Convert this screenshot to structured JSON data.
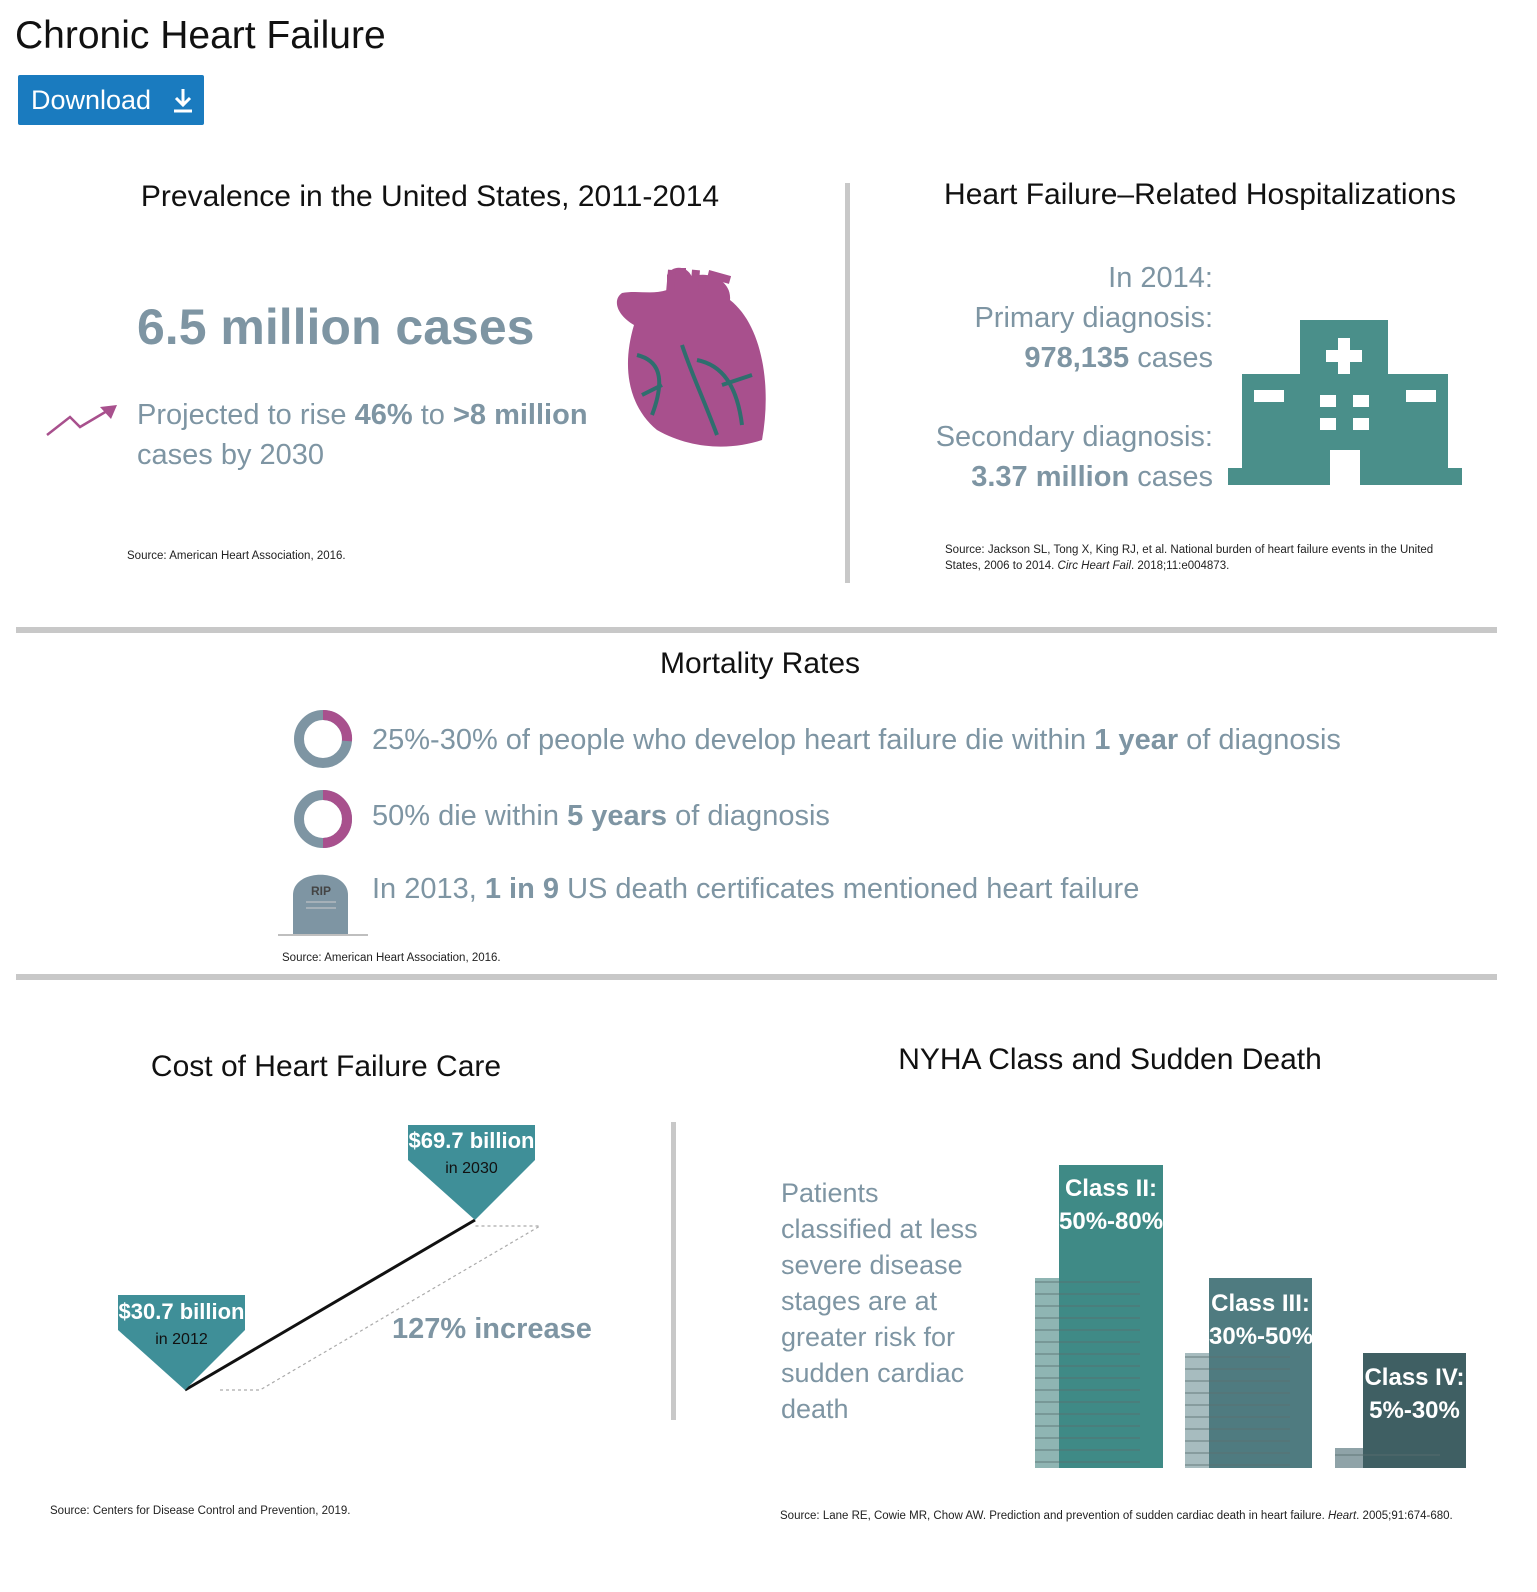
{
  "header": {
    "title": "Chronic Heart Failure",
    "download": "Download"
  },
  "prevalence": {
    "title": "Prevalence in the United States,  2011-2014",
    "cases": "6.5 million cases",
    "projection": [
      "Projected to rise ",
      "46%",
      " to ",
      ">8 million",
      " cases by 2030"
    ],
    "source": "Source:  American Heart Association, 2016."
  },
  "hospitalizations": {
    "title": "Heart Failure–Related Hospitalizations",
    "year": "In 2014:",
    "primary_label": "Primary diagnosis:",
    "primary_value": "978,135",
    "primary_unit": " cases",
    "secondary_label": "Secondary diagnosis:",
    "secondary_value": "3.37 million",
    "secondary_unit": " cases",
    "source": [
      "Source: Jackson SL, Tong X, King RJ, et al. National burden of heart failure events in the United States, 2006 to 2014. ",
      "Circ Heart Fail",
      ". 2018;11:e004873."
    ]
  },
  "mortality": {
    "title": "Mortality Rates",
    "items": [
      [
        "25%-30% of people who develop heart failure die within ",
        "1 year",
        " of diagnosis"
      ],
      [
        "50% die within ",
        "5 years",
        " of diagnosis"
      ],
      [
        "In 2013, ",
        "1 in 9",
        " US death certificates mentioned heart failure"
      ]
    ],
    "rip": "RIP",
    "source": "Source: American Heart Association, 2016."
  },
  "cost": {
    "title": "Cost of Heart Failure Care",
    "end_value": "$69.7 billion",
    "end_year": "in 2030",
    "start_value": "$30.7 billion",
    "start_year": "in 2012",
    "increase": "127% increase",
    "source": "Source: Centers for Disease Control and Prevention, 2019."
  },
  "nyha": {
    "title": "NYHA Class and Sudden Death",
    "description": "Patients classified at less severe disease stages are at greater risk for sudden cardiac death",
    "classes": [
      {
        "name": "Class II:",
        "range": "50%-80%"
      },
      {
        "name": "Class III:",
        "range": "30%-50%"
      },
      {
        "name": "Class IV:",
        "range": "5%-30%"
      }
    ],
    "source": [
      "Source: Lane RE, Cowie MR, Chow AW. Prediction and prevention of sudden cardiac death in heart failure. ",
      "Heart",
      ". 2005;91:674-680."
    ]
  }
}
